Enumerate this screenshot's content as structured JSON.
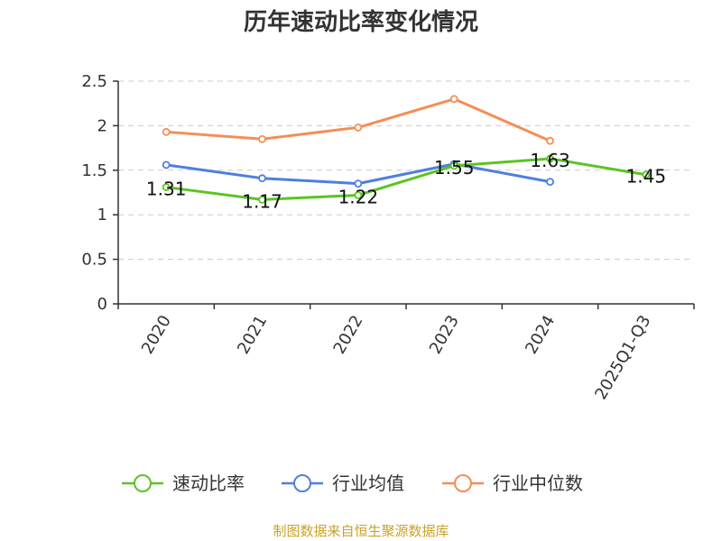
{
  "chart_data": {
    "type": "line",
    "title": "历年速动比率变化情况",
    "categories": [
      "2020",
      "2021",
      "2022",
      "2023",
      "2024",
      "2025Q1-Q3"
    ],
    "ylim": [
      0,
      2.5
    ],
    "yticks": [
      "0",
      "0.5",
      "1",
      "1.5",
      "2",
      "2.5"
    ],
    "ytick_values": [
      0,
      0.5,
      1,
      1.5,
      2,
      2.5
    ],
    "grid": true,
    "legend_position": "bottom",
    "series": [
      {
        "name": "速动比率",
        "color": "#5cc424",
        "values": [
          1.31,
          1.17,
          1.22,
          1.55,
          1.63,
          1.45
        ],
        "labels": [
          "1.31",
          "1.17",
          "1.22",
          "1.55",
          "1.63",
          "1.45"
        ],
        "show_labels": true
      },
      {
        "name": "行业均值",
        "color": "#4e7fe0",
        "values": [
          1.56,
          1.41,
          1.35,
          1.57,
          1.37,
          null
        ],
        "show_labels": false
      },
      {
        "name": "行业中位数",
        "color": "#f58d56",
        "values": [
          1.93,
          1.85,
          1.98,
          2.3,
          1.83,
          null
        ],
        "show_labels": false
      }
    ]
  },
  "footer": {
    "source": "制图数据来自恒生聚源数据库"
  }
}
